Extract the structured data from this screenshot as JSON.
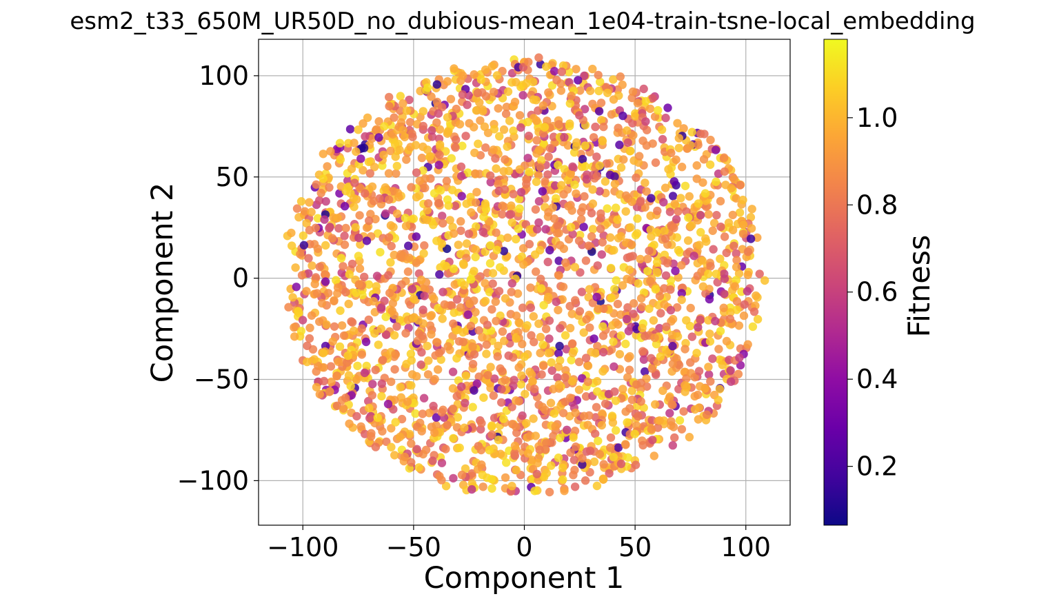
{
  "chart_data": {
    "type": "scatter",
    "title": "esm2_t33_650M_UR50D_no_dubious-mean_1e04-train-tsne-local_embedding",
    "xlabel": "Component 1",
    "ylabel": "Component 2",
    "xlim": [
      -120,
      120
    ],
    "ylim": [
      -122,
      118
    ],
    "x_ticks": [
      -100,
      -50,
      0,
      50,
      100
    ],
    "x_tick_labels": [
      "−100",
      "−50",
      "0",
      "50",
      "100"
    ],
    "y_ticks": [
      100,
      50,
      0,
      -50,
      -100
    ],
    "y_tick_labels": [
      "100",
      "50",
      "0",
      "−50",
      "−100"
    ],
    "grid": true,
    "colorbar": {
      "label": "Fitness",
      "colormap": "plasma",
      "range": [
        0.065,
        1.18
      ],
      "ticks": [
        1.0,
        0.8,
        0.6,
        0.4,
        0.2
      ],
      "tick_labels": [
        "1.0",
        "0.8",
        "0.6",
        "0.4",
        "0.2"
      ]
    },
    "point_cloud": {
      "description_of_points": "t-SNE embedding of ~2700 sequences, roughly uniform disc of radius ~110 centered near (0, 0), colored by fitness (mostly 0.75-1.1)",
      "count": 2700,
      "center": [
        0,
        0
      ],
      "radius": 108,
      "fitness_mean": 0.92,
      "fitness_min": 0.08,
      "fitness_max": 1.17
    },
    "colors": {
      "grid": "#b0b0b0",
      "axes": "#000000"
    }
  }
}
